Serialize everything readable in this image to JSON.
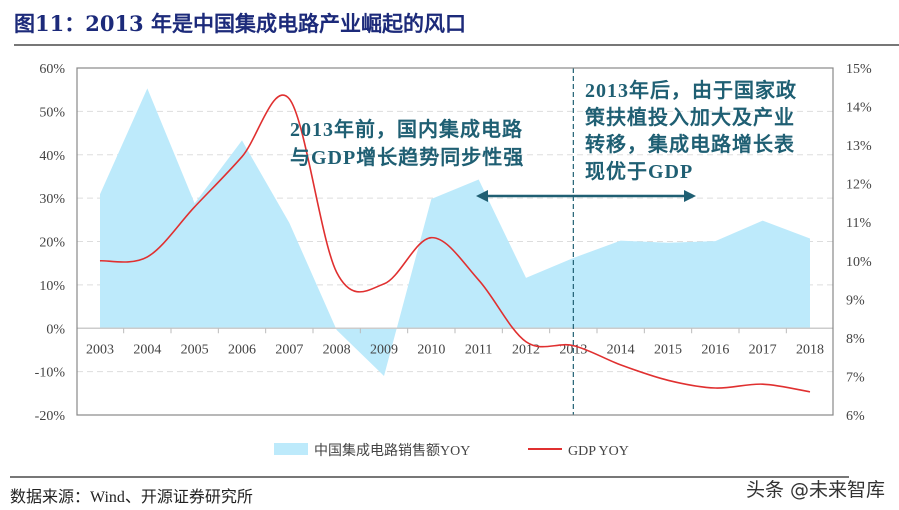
{
  "title": "图11：2013 年是中国集成电路产业崛起的风口",
  "source": "数据来源：Wind、开源证券研究所",
  "watermark": "头条 @未来智库",
  "chart_data": {
    "type": "area+line",
    "categories": [
      "2003",
      "2004",
      "2005",
      "2006",
      "2007",
      "2008",
      "2009",
      "2010",
      "2011",
      "2012",
      "2013",
      "2014",
      "2015",
      "2016",
      "2017",
      "2018"
    ],
    "series": [
      {
        "name": "中国集成电路销售额YOY",
        "type": "area",
        "axis": "left",
        "color": "#bdeafb",
        "values": [
          30.9,
          55.3,
          28.8,
          43.3,
          24.3,
          -0.4,
          -11.0,
          29.8,
          34.3,
          11.6,
          16.2,
          20.2,
          19.7,
          20.1,
          24.8,
          20.7
        ]
      },
      {
        "name": "GDP YOY",
        "type": "line",
        "axis": "right",
        "color": "#e03030",
        "values": [
          10.0,
          10.1,
          11.4,
          12.7,
          14.2,
          9.7,
          9.4,
          10.6,
          9.5,
          7.9,
          7.8,
          7.3,
          6.9,
          6.7,
          6.8,
          6.6
        ]
      }
    ],
    "left_axis": {
      "ylim": [
        -20,
        60
      ],
      "ticks": [
        "60%",
        "50%",
        "40%",
        "30%",
        "20%",
        "10%",
        "0%",
        "-10%",
        "-20%"
      ]
    },
    "right_axis": {
      "ylim": [
        6,
        15
      ],
      "ticks": [
        "15%",
        "14%",
        "13%",
        "12%",
        "11%",
        "10%",
        "9%",
        "8%",
        "7%",
        "6%"
      ]
    },
    "grid": true,
    "legend_position": "bottom",
    "annotations": {
      "divider_year": "2013",
      "left_text": [
        "2013年前，国内集成电路",
        "与GDP增长趋势同步性强"
      ],
      "right_text": [
        "2013年后，由于国家政",
        "策扶植投入加大及产业",
        "转移，集成电路增长表",
        "现优于GDP"
      ],
      "text_color": "#1f5f73"
    }
  }
}
